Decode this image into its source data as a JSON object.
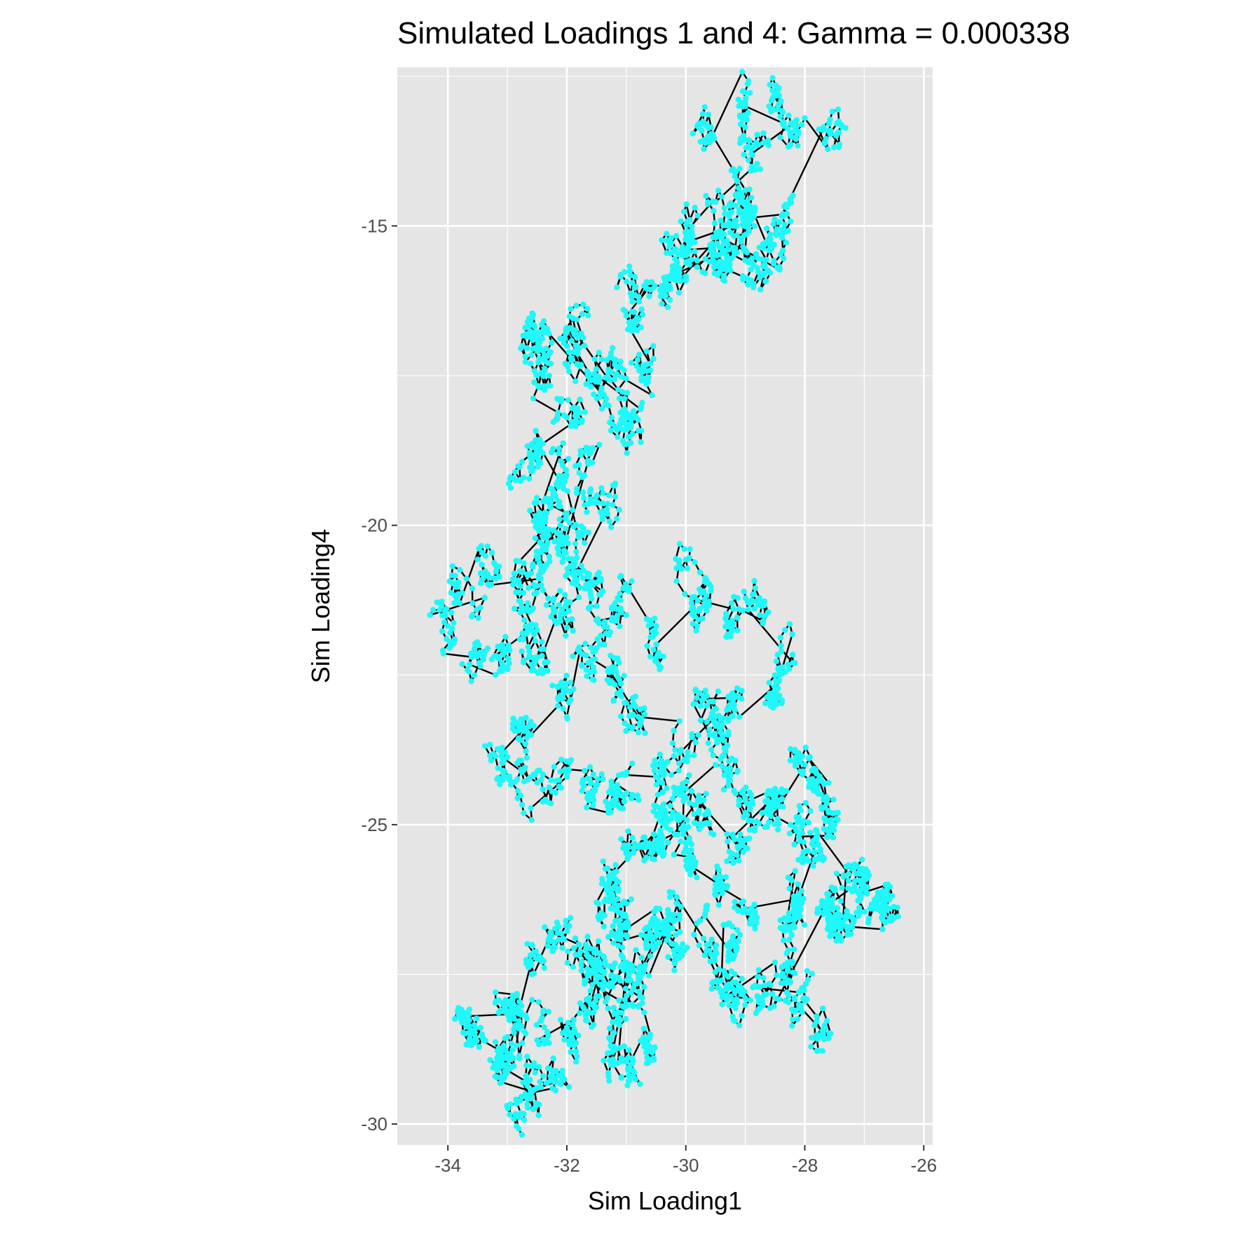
{
  "chart_data": {
    "type": "line",
    "title": "Simulated Loadings 1 and 4: Gamma = 0.000338",
    "xlabel": "Sim Loading1",
    "ylabel": "Sim Loading4",
    "xlim": [
      -34.85,
      -25.85
    ],
    "ylim": [
      -30.35,
      -12.35
    ],
    "x_ticks": [
      -34,
      -32,
      -30,
      -28,
      -26
    ],
    "x_tick_labels": [
      "-34",
      "-32",
      "-30",
      "-28",
      "-26"
    ],
    "y_ticks": [
      -30,
      -25,
      -20,
      -15
    ],
    "y_tick_labels": [
      "-30",
      "-25",
      "-20",
      "-15"
    ],
    "grid": true,
    "legend": "none",
    "point_color": "#1ff8f9",
    "line_color": "#000000",
    "panel_color": "#e5e5e5",
    "series": [
      {
        "x": [
          -28.6,
          -29.0,
          -29.6,
          -29.0,
          -29.0,
          -28.3,
          -27.7,
          -28.0,
          -28.9,
          -29.5,
          -30.0,
          -29.2,
          -28.6,
          -29.4,
          -30.0,
          -29.3,
          -28.8,
          -29.6,
          -30.1,
          -30.4,
          -30.7,
          -31.0,
          -30.6,
          -31.3,
          -31.7,
          -32.0,
          -31.3,
          -31.0,
          -31.5,
          -32.3,
          -32.7,
          -32.4,
          -32.0,
          -32.5,
          -32.6,
          -32.1,
          -32.4,
          -32.0,
          -31.8,
          -31.4,
          -31.6,
          -32.0,
          -32.4,
          -32.8,
          -32.6,
          -33.3,
          -33.8,
          -34.3,
          -33.6,
          -33.2,
          -32.7,
          -32.5,
          -32.2,
          -31.8,
          -31.4,
          -31.0,
          -30.5,
          -29.9,
          -29.7,
          -29.2,
          -28.7,
          -28.2,
          -28.5,
          -29.1,
          -29.7,
          -29.6,
          -30.1,
          -30.8,
          -31.3,
          -31.8,
          -32.0,
          -32.6,
          -33.1,
          -32.5,
          -32.0,
          -31.7,
          -31.3,
          -30.9,
          -30.5,
          -30.0,
          -29.5,
          -29.0,
          -28.5,
          -28.0,
          -27.6,
          -27.5,
          -28.1,
          -28.6,
          -29.2,
          -29.8,
          -30.3,
          -30.7,
          -31.2,
          -31.5,
          -31.0,
          -30.5,
          -30.2,
          -30.8,
          -31.2,
          -31.6,
          -32.0,
          -32.5,
          -32.9,
          -33.2,
          -33.7,
          -33.4,
          -32.9,
          -32.5,
          -32.2,
          -32.7,
          -33.1,
          -32.6,
          -32.3,
          -31.8,
          -31.5,
          -31.0,
          -30.6,
          -30.9,
          -31.3,
          -31.0,
          -30.6,
          -30.2,
          -29.7,
          -29.2,
          -29.4,
          -29.0,
          -28.5,
          -28.1,
          -27.8,
          -28.3,
          -27.5,
          -27.0,
          -26.6,
          -26.9,
          -27.3,
          -27.6,
          -27.3,
          -27.8,
          -28.1,
          -28.3,
          -29.0,
          -29.5,
          -29.9,
          -30.2,
          -30.5
        ]
      }
    ]
  }
}
